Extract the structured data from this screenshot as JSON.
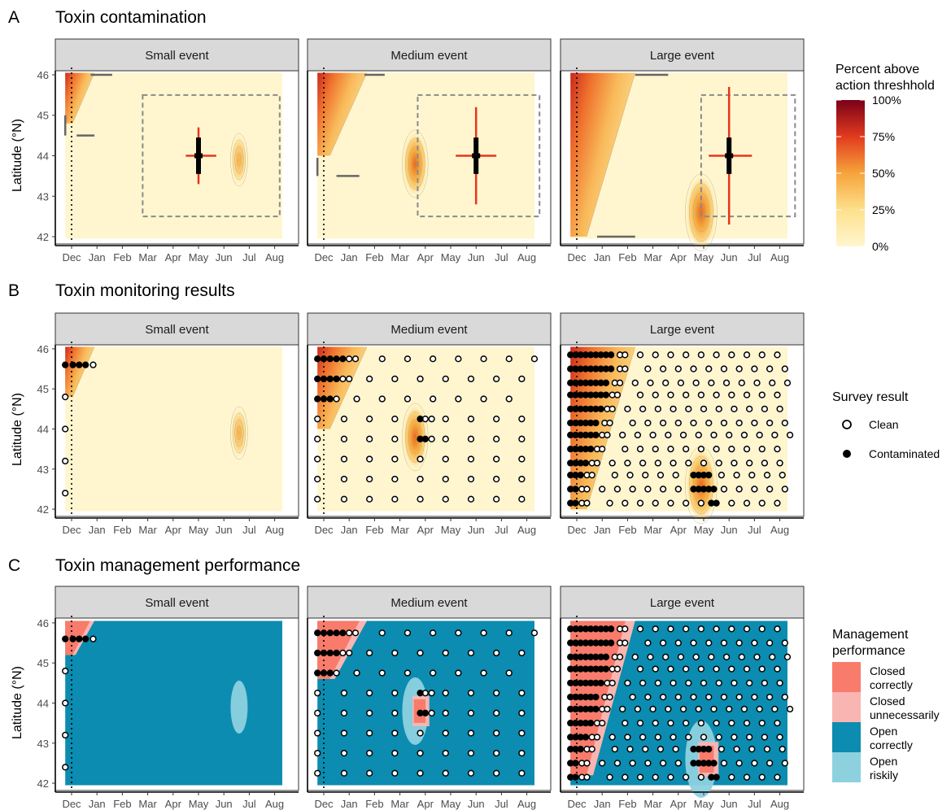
{
  "rows": [
    {
      "letter": "A",
      "title": "Toxin contamination"
    },
    {
      "letter": "B",
      "title": "Toxin monitoring results"
    },
    {
      "letter": "C",
      "title": "Toxin management performance"
    }
  ],
  "panels": [
    "Small event",
    "Medium event",
    "Large event"
  ],
  "ylabel": "Latitude (°N)",
  "legends": {
    "contamination": {
      "title_line1": "Percent above",
      "title_line2": "action threshhold",
      "ticks": [
        "100%",
        "75%",
        "50%",
        "25%",
        "0%"
      ]
    },
    "survey": {
      "title": "Survey result",
      "items": [
        "Clean",
        "Contaminated"
      ]
    },
    "management": {
      "title_line1": "Management",
      "title_line2": "performance",
      "items": [
        {
          "line1": "Closed",
          "line2": "correctly",
          "color": "#f87b6b"
        },
        {
          "line1": "Closed",
          "line2": "unnecessarily",
          "color": "#f9b5b2"
        },
        {
          "line1": "Open",
          "line2": "correctly",
          "color": "#0b8cb0"
        },
        {
          "line1": "Open",
          "line2": "riskily",
          "color": "#8dd1df"
        }
      ]
    }
  },
  "chart_data": {
    "type": "heatmap",
    "facets": [
      "Small event",
      "Medium event",
      "Large event"
    ],
    "x_ticks": [
      "Dec",
      "Jan",
      "Feb",
      "Mar",
      "Apr",
      "May",
      "Jun",
      "Jul",
      "Aug"
    ],
    "y_ticks": [
      "42",
      "43",
      "44",
      "45",
      "46"
    ],
    "ylim": [
      41.9,
      46.1
    ],
    "colors": {
      "background": "#fff6cf",
      "low": "#fde7a3",
      "mid": "#f6a43b",
      "high": "#e03a1f",
      "max": "#7a0018",
      "estimate": "#e8341c",
      "estimate_core": "#000000",
      "box": "#8a8a8a",
      "open_correct": "#0b8cb0",
      "open_risky": "#8dd1df",
      "closed_correct": "#f87b6b",
      "closed_unnecessary": "#f9b5b2"
    },
    "start_marker_month": "Dec",
    "events": [
      {
        "name": "Small event",
        "wedge_end_month": 0.9,
        "blob": {
          "month": 6.6,
          "lat": 43.9,
          "intensity": 0.25
        },
        "estimate": {
          "month": 5.0,
          "lat": 44.0,
          "lat_range": [
            43.3,
            44.7
          ],
          "month_range": [
            4.5,
            5.7
          ],
          "core_lat": [
            43.55,
            44.45
          ]
        },
        "box": {
          "month": [
            2.8,
            8.2
          ],
          "lat": [
            42.5,
            45.5
          ]
        },
        "bars": [
          {
            "month": [
              0.75,
              1.6
            ],
            "lat": 46.0
          },
          {
            "month": [
              0.2,
              0.9
            ],
            "lat": 44.5
          },
          {
            "month": [
              -0.25,
              -0.25
            ],
            "lat": [
              44.5,
              45.0
            ]
          }
        ],
        "survey": {
          "contaminated": [
            [
              -0.25,
              45.6
            ],
            [
              0.05,
              45.6
            ],
            [
              0.3,
              45.6
            ],
            [
              0.55,
              45.6
            ]
          ],
          "clean": [
            [
              0.85,
              45.6
            ],
            [
              -0.25,
              44.8
            ],
            [
              -0.25,
              44.0
            ],
            [
              -0.25,
              43.2
            ],
            [
              -0.25,
              42.4
            ]
          ]
        }
      },
      {
        "name": "Medium event",
        "wedge_end_month": 1.7,
        "blob": {
          "month": 3.6,
          "lat": 43.8,
          "intensity": 0.55
        },
        "estimate": {
          "month": 6.0,
          "lat": 44.0,
          "lat_range": [
            42.8,
            45.2
          ],
          "month_range": [
            5.2,
            6.8
          ],
          "core_lat": [
            43.55,
            44.45
          ]
        },
        "box": {
          "month": [
            3.7,
            8.5
          ],
          "lat": [
            42.5,
            45.5
          ]
        },
        "bars": [
          {
            "month": [
              1.6,
              2.4
            ],
            "lat": 46.0
          },
          {
            "month": [
              0.5,
              1.4
            ],
            "lat": 43.5
          },
          {
            "month": [
              -0.25,
              -0.25
            ],
            "lat": [
              43.5,
              43.95
            ]
          }
        ],
        "survey": {
          "contaminated": [
            [
              -0.25,
              45.75
            ],
            [
              0.0,
              45.75
            ],
            [
              0.25,
              45.75
            ],
            [
              0.5,
              45.75
            ],
            [
              0.75,
              45.75
            ],
            [
              -0.25,
              45.25
            ],
            [
              0.0,
              45.25
            ],
            [
              0.25,
              45.25
            ],
            [
              0.5,
              45.25
            ],
            [
              -0.25,
              44.75
            ],
            [
              0.0,
              44.75
            ],
            [
              0.25,
              44.75
            ],
            [
              3.8,
              44.25
            ],
            [
              3.8,
              43.75
            ],
            [
              4.0,
              43.75
            ]
          ],
          "clean": [
            [
              1.0,
              45.75
            ],
            [
              1.25,
              45.75
            ],
            [
              2.3,
              45.75
            ],
            [
              3.3,
              45.75
            ],
            [
              4.3,
              45.75
            ],
            [
              5.3,
              45.75
            ],
            [
              6.3,
              45.75
            ],
            [
              7.3,
              45.75
            ],
            [
              8.3,
              45.75
            ],
            [
              0.75,
              45.25
            ],
            [
              1.0,
              45.25
            ],
            [
              1.8,
              45.25
            ],
            [
              2.8,
              45.25
            ],
            [
              3.8,
              45.25
            ],
            [
              4.8,
              45.25
            ],
            [
              5.8,
              45.25
            ],
            [
              6.8,
              45.25
            ],
            [
              7.8,
              45.25
            ],
            [
              0.5,
              44.75
            ],
            [
              1.3,
              44.75
            ],
            [
              2.3,
              44.75
            ],
            [
              3.3,
              44.75
            ],
            [
              4.3,
              44.75
            ],
            [
              5.3,
              44.75
            ],
            [
              6.3,
              44.75
            ],
            [
              7.3,
              44.75
            ],
            [
              -0.25,
              44.25
            ],
            [
              0.8,
              44.25
            ],
            [
              1.8,
              44.25
            ],
            [
              2.8,
              44.25
            ],
            [
              4.0,
              44.25
            ],
            [
              4.25,
              44.25
            ],
            [
              4.8,
              44.25
            ],
            [
              5.8,
              44.25
            ],
            [
              6.8,
              44.25
            ],
            [
              7.8,
              44.25
            ],
            [
              -0.25,
              43.75
            ],
            [
              0.8,
              43.75
            ],
            [
              1.8,
              43.75
            ],
            [
              2.8,
              43.75
            ],
            [
              4.25,
              43.75
            ],
            [
              4.8,
              43.75
            ],
            [
              5.8,
              43.75
            ],
            [
              6.8,
              43.75
            ],
            [
              7.8,
              43.75
            ],
            [
              -0.25,
              43.25
            ],
            [
              0.8,
              43.25
            ],
            [
              1.8,
              43.25
            ],
            [
              2.8,
              43.25
            ],
            [
              3.8,
              43.25
            ],
            [
              4.8,
              43.25
            ],
            [
              5.8,
              43.25
            ],
            [
              6.8,
              43.25
            ],
            [
              7.8,
              43.25
            ],
            [
              -0.25,
              42.75
            ],
            [
              0.8,
              42.75
            ],
            [
              1.8,
              42.75
            ],
            [
              2.8,
              42.75
            ],
            [
              3.8,
              42.75
            ],
            [
              4.8,
              42.75
            ],
            [
              5.8,
              42.75
            ],
            [
              6.8,
              42.75
            ],
            [
              7.8,
              42.75
            ],
            [
              -0.25,
              42.25
            ],
            [
              0.8,
              42.25
            ],
            [
              1.8,
              42.25
            ],
            [
              2.8,
              42.25
            ],
            [
              3.8,
              42.25
            ],
            [
              4.8,
              42.25
            ],
            [
              5.8,
              42.25
            ],
            [
              6.8,
              42.25
            ],
            [
              7.8,
              42.25
            ]
          ]
        }
      },
      {
        "name": "Large event",
        "wedge_end_month": 2.3,
        "blob": {
          "month": 4.9,
          "lat": 42.6,
          "intensity": 0.75
        },
        "estimate": {
          "month": 6.0,
          "lat": 44.0,
          "lat_range": [
            42.3,
            45.7
          ],
          "month_range": [
            5.2,
            6.9
          ],
          "core_lat": [
            43.55,
            44.45
          ]
        },
        "box": {
          "month": [
            4.9,
            8.6
          ],
          "lat": [
            42.5,
            45.5
          ]
        },
        "bars": [
          {
            "month": [
              2.3,
              3.6
            ],
            "lat": 46.0
          },
          {
            "month": [
              0.8,
              2.3
            ],
            "lat": 42.0
          }
        ],
        "survey": {
          "rows": [
            45.85,
            45.5,
            45.15,
            44.85,
            44.5,
            44.15,
            43.85,
            43.5,
            43.15,
            42.85,
            42.5,
            42.15
          ],
          "contaminated_through": [
            1.5,
            1.5,
            1.3,
            1.2,
            1.0,
            0.9,
            0.8,
            0.6,
            0.4,
            0.2,
            0.0,
            0.0
          ],
          "blob_contaminated": [
            [
              4.6,
              42.85
            ],
            [
              4.8,
              42.85
            ],
            [
              5.0,
              42.85
            ],
            [
              5.2,
              42.85
            ],
            [
              4.6,
              42.5
            ],
            [
              4.8,
              42.5
            ],
            [
              5.0,
              42.5
            ],
            [
              5.2,
              42.5
            ],
            [
              5.4,
              42.5
            ],
            [
              5.3,
              42.15
            ],
            [
              5.5,
              42.15
            ]
          ],
          "step": 0.2,
          "grid_step": 0.6
        }
      }
    ]
  }
}
